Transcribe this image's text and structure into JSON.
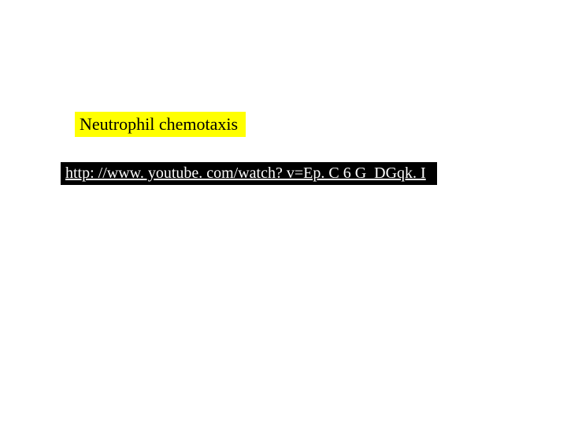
{
  "slide": {
    "title": "Neutrophil chemotaxis",
    "title_background": "#ffff00",
    "title_color": "#000000",
    "title_fontsize": 22,
    "link_text": "http: //www. youtube. com/watch? v=Ep. C 6 G_DGqk. I",
    "link_background": "#000000",
    "link_color": "#ffffff",
    "link_fontsize": 20,
    "page_background": "#ffffff",
    "font_family": "Times New Roman"
  }
}
